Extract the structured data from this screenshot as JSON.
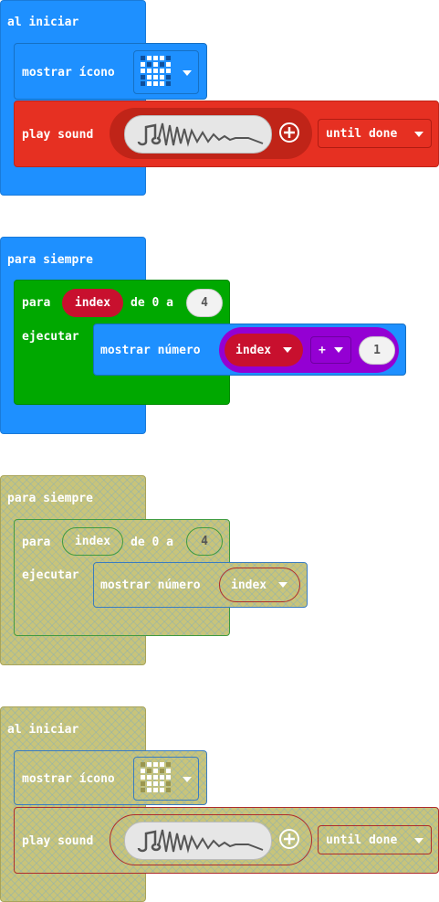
{
  "colors": {
    "event_blue": "#1e90ff",
    "basic_blue": "#1e90ff",
    "music_red": "#e63022",
    "loop_green": "#00a800",
    "variable_red": "#c8102e",
    "math_purple": "#9400d3",
    "disabled_fill": "#c8c47a"
  },
  "block1": {
    "hat_label": "al iniciar",
    "show_icon_label": "mostrar ícono",
    "icon_name": "skull-icon",
    "play_label": "play sound",
    "sound_name": "music-note-icon",
    "mode_label": "until done"
  },
  "block2": {
    "hat_label": "para siempre",
    "for_label": "para",
    "var_name": "index",
    "range_label": "de 0 a",
    "range_end": "4",
    "do_label": "ejecutar",
    "show_number_label": "mostrar número",
    "op_label": "+",
    "op_value": "1"
  },
  "block3": {
    "hat_label": "para siempre",
    "for_label": "para",
    "var_name": "index",
    "range_label": "de 0 a",
    "range_end": "4",
    "do_label": "ejecutar",
    "show_number_label": "mostrar número",
    "arg_var": "index"
  },
  "block4": {
    "hat_label": "al iniciar",
    "show_icon_label": "mostrar ícono",
    "play_label": "play sound",
    "mode_label": "until done"
  }
}
